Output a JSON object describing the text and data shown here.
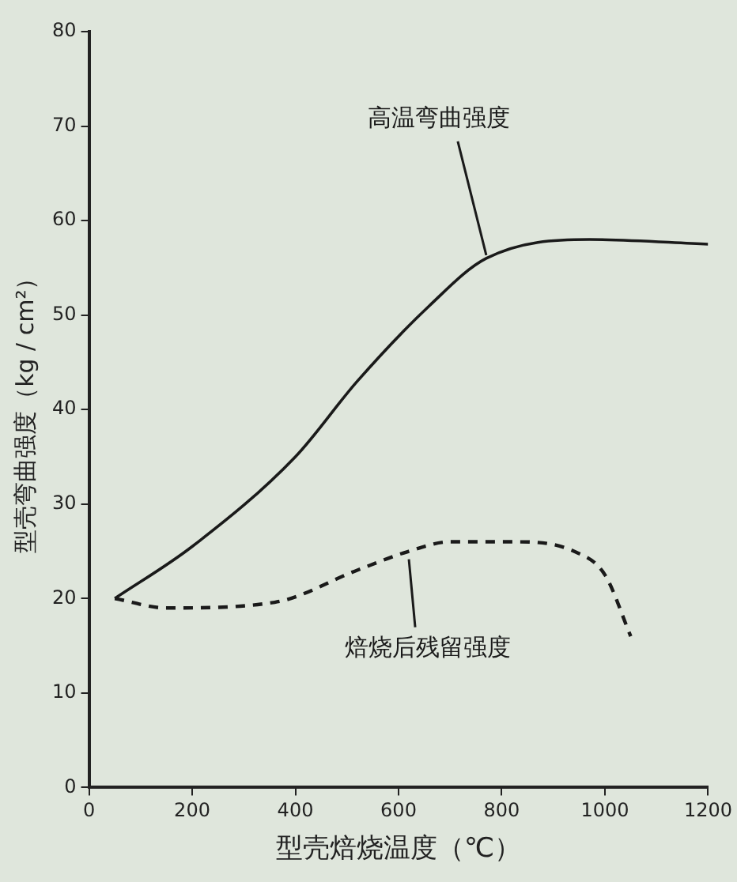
{
  "chart_data": {
    "type": "line",
    "xlabel": "型壳焙烧温度（℃）",
    "ylabel": "型壳弯曲强度（kg / cm²）",
    "xlim": [
      0,
      1200
    ],
    "xticks": [
      0,
      200,
      400,
      600,
      800,
      1000,
      1200
    ],
    "ylim": [
      0,
      80
    ],
    "yticks": [
      0,
      10,
      20,
      30,
      40,
      50,
      60,
      70,
      80
    ],
    "grid": false,
    "legend": false,
    "marker": "none",
    "series": [
      {
        "color": "#1a1a1a",
        "line_style": "solid",
        "x": [
          50,
          200,
          400,
          520,
          660,
          770,
          970,
          1200
        ],
        "values": [
          20,
          25.5,
          35,
          43,
          51,
          56,
          58,
          57.5
        ]
      },
      {
        "color": "#1a1a1a",
        "line_style": "dashed",
        "x": [
          50,
          150,
          360,
          520,
          620,
          700,
          830,
          940,
          1000,
          1050
        ],
        "values": [
          20,
          19,
          19.6,
          23,
          25,
          26,
          26,
          25,
          22.5,
          16
        ]
      }
    ],
    "annotations": [
      {
        "text": "高温弯曲强度",
        "x": 770,
        "y": 56
      },
      {
        "text": "焙烧后残留强度",
        "x": 620,
        "y": 25
      }
    ]
  }
}
